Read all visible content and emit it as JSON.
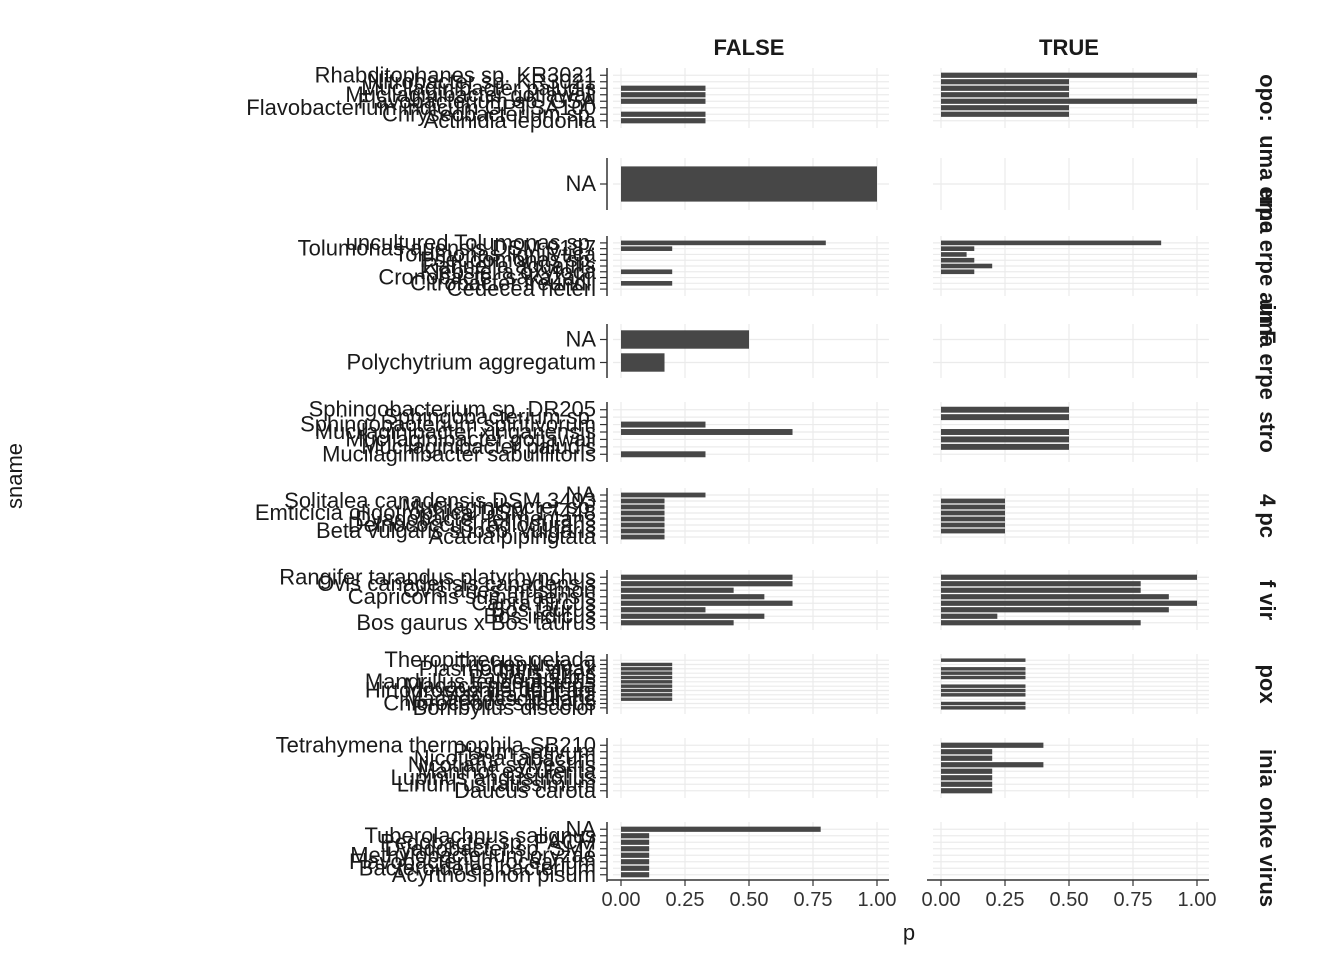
{
  "chart_data": {
    "type": "bar",
    "orientation": "horizontal",
    "xlabel": "p",
    "ylabel": "sname",
    "xlim": [
      0,
      1
    ],
    "x_ticks": [
      "0.00",
      "0.25",
      "0.50",
      "0.75",
      "1.00"
    ],
    "column_facets": [
      "FALSE",
      "TRUE"
    ],
    "grid": true,
    "colors": {
      "bar": "#474747",
      "grid": "#ebebeb",
      "axis": "#333333",
      "text": "#1a1a1a"
    },
    "rows": [
      {
        "strip": "opo:",
        "categories": [
          "Rhabditophanes sp. KR3021",
          "Nitrobacter sp. KR3021",
          "Mucilaginibacter paludis",
          "Mucilaginibacter gotjawali",
          "Flavobacterium sp. GSA",
          "Flavobacterium indicum GPTSA100",
          "Chryseobacterium sp.",
          "Actinidia lepdonia"
        ],
        "FALSE": [
          0.0,
          0.0,
          0.33,
          0.33,
          0.33,
          0.0,
          0.33,
          0.33
        ],
        "TRUE": [
          1.0,
          0.5,
          0.5,
          0.5,
          1.0,
          0.5,
          0.5,
          0.0
        ]
      },
      {
        "strip": "uma erpe",
        "categories": [
          "NA"
        ],
        "FALSE": [
          1.0
        ],
        "TRUE": [
          0.0
        ]
      },
      {
        "strip": "uma erpe ain F",
        "categories": [
          "uncultured Tolumonas sp.",
          "Tolumonas auensis DSM 9187",
          "Tolumonas lignilytica",
          "Pseudomonas sp.",
          "Rahnella aquatilis",
          "Klebsiella oxytoca",
          "Cronobacter sakazakii",
          "Citrobacter freundii",
          "Cedecea neteri"
        ],
        "FALSE": [
          0.8,
          0.2,
          0.0,
          0.0,
          0.0,
          0.2,
          0.0,
          0.2,
          0.0
        ],
        "TRUE": [
          0.86,
          0.13,
          0.1,
          0.13,
          0.2,
          0.13,
          0.0,
          0.0,
          0.0
        ]
      },
      {
        "strip": "uma erpe",
        "categories": [
          "NA",
          "Polychytrium aggregatum"
        ],
        "FALSE": [
          0.5,
          0.17
        ],
        "TRUE": [
          0.0,
          0.0
        ]
      },
      {
        "strip": "stro",
        "categories": [
          "Sphingobacterium sp. DR205",
          "Sphingobacterium sp.",
          "Sphingobacterium spiritivorum",
          "Mucilaginibacter xinganensis",
          "Mucilaginibacter gotjawali",
          "Mucilaginibacter paludis",
          "Mucilaginibacter sabulilitoris"
        ],
        "FALSE": [
          0.0,
          0.0,
          0.33,
          0.67,
          0.0,
          0.0,
          0.33
        ],
        "TRUE": [
          0.5,
          0.5,
          0.0,
          0.5,
          0.5,
          0.5,
          0.0
        ]
      },
      {
        "strip": "4 pc",
        "categories": [
          "NA",
          "Solitalea canadensis DSM 3403",
          "Mucilaginibacter sp.",
          "Emticicia oligotrophica DSM 17448",
          "Dyadobacter fermentans",
          "Deinococcus radiodurans",
          "Beta vulgaris subsp. vulgaris",
          "Acacia pipingtata"
        ],
        "FALSE": [
          0.33,
          0.17,
          0.17,
          0.17,
          0.17,
          0.17,
          0.17,
          0.17
        ],
        "TRUE": [
          0.0,
          0.25,
          0.25,
          0.25,
          0.25,
          0.25,
          0.25,
          0.0
        ]
      },
      {
        "strip": "f vir",
        "categories": [
          "Rangifer tarandus platyrhynchus",
          "Ovis canadensis canadensis",
          "Ovis aries musimon",
          "Capricornis sumatraensis",
          "Capra hircus",
          "Bos taurus",
          "Bos indicus",
          "Bos gaurus x Bos taurus"
        ],
        "FALSE": [
          0.67,
          0.67,
          0.44,
          0.56,
          0.67,
          0.33,
          0.56,
          0.44
        ],
        "TRUE": [
          1.0,
          0.78,
          0.78,
          0.89,
          1.0,
          0.89,
          0.22,
          0.78
        ]
      },
      {
        "strip": "pox",
        "categories": [
          "Theropithecus gelada",
          "Trichoplusia ni",
          "Plasmodium vivax",
          "Ovis aries",
          "Papio anubis",
          "Mandrillus leucophaeus",
          "Macaca nemestrina",
          "Hirtodrosophila duncani",
          "Macaca mulatta",
          "Macaca fascicularis",
          "Chlorocebus sabaeus",
          "Bombylius discolor"
        ],
        "FALSE": [
          0.0,
          0.2,
          0.2,
          0.2,
          0.2,
          0.2,
          0.2,
          0.2,
          0.2,
          0.2,
          0.0,
          0.0
        ],
        "TRUE": [
          0.33,
          0.0,
          0.33,
          0.33,
          0.33,
          0.0,
          0.33,
          0.33,
          0.33,
          0.0,
          0.33,
          0.33
        ]
      },
      {
        "strip": "inia",
        "categories": [
          "Tetrahymena thermophila SB210",
          "Pisum sativum",
          "Nicotiana tabacum",
          "Nicotiana sylvestris",
          "Manihot esculenta",
          "Lupinus angustifolius",
          "Linum usitatissimum",
          "Daucus carota"
        ],
        "FALSE": [
          0.0,
          0.0,
          0.0,
          0.0,
          0.0,
          0.0,
          0.0,
          0.0
        ],
        "TRUE": [
          0.4,
          0.2,
          0.2,
          0.4,
          0.2,
          0.2,
          0.2,
          0.2
        ]
      },
      {
        "strip": "onke virus",
        "categories": [
          "NA",
          "Tuberolachnus salignus",
          "Pedobacter sp. PACM",
          "Dyadobacter sp. SM7",
          "Methylobacterium oryzae",
          "Flavobacterium oceanum",
          "Bacteroidetes bacterium",
          "Acyrthosiphon pisum"
        ],
        "FALSE": [
          0.78,
          0.11,
          0.11,
          0.11,
          0.11,
          0.11,
          0.11,
          0.11
        ],
        "TRUE": [
          0.0,
          0.0,
          0.0,
          0.0,
          0.0,
          0.0,
          0.0,
          0.0
        ]
      }
    ]
  }
}
